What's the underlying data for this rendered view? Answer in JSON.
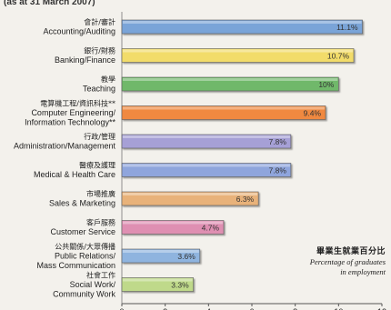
{
  "header": {
    "partial_text": "(as at 31 March 2007)"
  },
  "legend": {
    "title_zh": "畢業生就業百分比",
    "title_en_line1": "Percentage of graduates",
    "title_en_line2": "in employment"
  },
  "chart_data": {
    "type": "bar",
    "orientation": "horizontal",
    "categories": [
      {
        "zh": "會計/審計",
        "en": [
          "Accounting/Auditing"
        ]
      },
      {
        "zh": "銀行/財務",
        "en": [
          "Banking/Finance"
        ]
      },
      {
        "zh": "教學",
        "en": [
          "Teaching"
        ]
      },
      {
        "zh": "電算機工程/資訊科技**",
        "en": [
          "Computer Engineering/",
          "Information Technology**"
        ]
      },
      {
        "zh": "行政/管理",
        "en": [
          "Administration/Management"
        ]
      },
      {
        "zh": "醫療及護理",
        "en": [
          "Medical & Health Care"
        ]
      },
      {
        "zh": "市場推廣",
        "en": [
          "Sales & Marketing"
        ]
      },
      {
        "zh": "客戶服務",
        "en": [
          "Customer Service"
        ]
      },
      {
        "zh": "公共關係/大眾傳播",
        "en": [
          "Public Relations/",
          "Mass Communication"
        ]
      },
      {
        "zh": "社會工作",
        "en": [
          "Social Work/",
          "Community Work"
        ]
      }
    ],
    "values": [
      11.1,
      10.7,
      10,
      9.4,
      7.8,
      7.8,
      6.3,
      4.7,
      3.6,
      3.3
    ],
    "data_labels": [
      "11.1%",
      "10.7%",
      "10%",
      "9.4%",
      "7.8%",
      "7.8%",
      "6.3%",
      "4.7%",
      "3.6%",
      "3.3%"
    ],
    "colors": [
      "#7aa4d8",
      "#f2dc6a",
      "#6fb86b",
      "#f0893f",
      "#a6a0d6",
      "#8fa5dc",
      "#e8b27a",
      "#df8fb2",
      "#8fb4df",
      "#bfd98a"
    ],
    "xlim": [
      0,
      12
    ],
    "xticks": [
      0,
      2,
      4,
      6,
      8,
      10,
      12
    ],
    "grid": false
  }
}
